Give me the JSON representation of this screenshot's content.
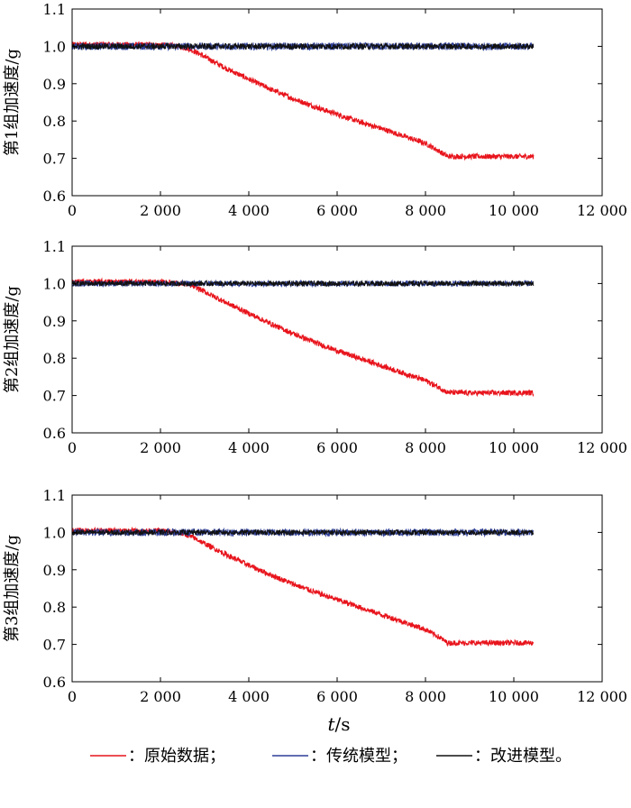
{
  "chart_data": [
    {
      "type": "line",
      "ylabel": "第1组加速度/g",
      "xlim": [
        0,
        12000
      ],
      "ylim": [
        0.6,
        1.1
      ],
      "xticks": [
        0,
        2000,
        4000,
        6000,
        8000,
        10000,
        12000
      ],
      "xtick_labels": [
        "0",
        "2 000",
        "4 000",
        "6 000",
        "8 000",
        "10 000",
        "12 000"
      ],
      "yticks": [
        0.6,
        0.7,
        0.8,
        0.9,
        1.0,
        1.1
      ],
      "ytick_labels": [
        "0.6",
        "0.7",
        "0.8",
        "0.9",
        "1.0",
        "1.1"
      ],
      "series": [
        {
          "name": "原始数据",
          "color": "#e8141c",
          "x": [
            0,
            1000,
            2000,
            2200,
            2400,
            2600,
            2800,
            3000,
            3500,
            4000,
            4500,
            5000,
            5500,
            6000,
            6500,
            7000,
            7500,
            8000,
            8300,
            8500,
            9000,
            9500,
            10000,
            10450
          ],
          "y": [
            1.005,
            1.005,
            1.004,
            1.003,
            1.0,
            0.995,
            0.985,
            0.972,
            0.94,
            0.912,
            0.885,
            0.86,
            0.838,
            0.818,
            0.798,
            0.78,
            0.76,
            0.74,
            0.72,
            0.705,
            0.705,
            0.705,
            0.705,
            0.705
          ],
          "noise": 0.007
        },
        {
          "name": "传统模型",
          "color": "#2d3f9a",
          "x": [
            0,
            10450
          ],
          "y": [
            1.0,
            1.0
          ],
          "noise": 0.01
        },
        {
          "name": "改进模型",
          "color": "#111111",
          "x": [
            0,
            10450
          ],
          "y": [
            1.0,
            1.0
          ],
          "noise": 0.008
        }
      ]
    },
    {
      "type": "line",
      "ylabel": "第2组加速度/g",
      "xlim": [
        0,
        12000
      ],
      "ylim": [
        0.6,
        1.1
      ],
      "xticks": [
        0,
        2000,
        4000,
        6000,
        8000,
        10000,
        12000
      ],
      "xtick_labels": [
        "0",
        "2 000",
        "4 000",
        "6 000",
        "8 000",
        "10 000",
        "12 000"
      ],
      "yticks": [
        0.6,
        0.7,
        0.8,
        0.9,
        1.0,
        1.1
      ],
      "ytick_labels": [
        "0.6",
        "0.7",
        "0.8",
        "0.9",
        "1.0",
        "1.1"
      ],
      "series": [
        {
          "name": "原始数据",
          "color": "#e8141c",
          "x": [
            0,
            1000,
            2000,
            2300,
            2600,
            2800,
            3000,
            3500,
            4000,
            4500,
            5000,
            5500,
            6000,
            6500,
            7000,
            7500,
            8000,
            8300,
            8500,
            9000,
            9500,
            10000,
            10450
          ],
          "y": [
            1.005,
            1.005,
            1.004,
            1.002,
            0.998,
            0.99,
            0.978,
            0.948,
            0.92,
            0.892,
            0.866,
            0.842,
            0.82,
            0.8,
            0.78,
            0.76,
            0.74,
            0.722,
            0.708,
            0.707,
            0.707,
            0.707,
            0.707
          ],
          "noise": 0.007
        },
        {
          "name": "传统模型",
          "color": "#2d3f9a",
          "x": [
            0,
            10450
          ],
          "y": [
            1.0,
            1.0
          ],
          "noise": 0.008
        },
        {
          "name": "改进模型",
          "color": "#111111",
          "x": [
            0,
            10450
          ],
          "y": [
            1.0,
            1.0
          ],
          "noise": 0.007
        }
      ]
    },
    {
      "type": "line",
      "ylabel": "第3组加速度/g",
      "xlim": [
        0,
        12000
      ],
      "ylim": [
        0.6,
        1.1
      ],
      "xticks": [
        0,
        2000,
        4000,
        6000,
        8000,
        10000,
        12000
      ],
      "xtick_labels": [
        "0",
        "2 000",
        "4 000",
        "6 000",
        "8 000",
        "10 000",
        "12 000"
      ],
      "yticks": [
        0.6,
        0.7,
        0.8,
        0.9,
        1.0,
        1.1
      ],
      "ytick_labels": [
        "0.6",
        "0.7",
        "0.8",
        "0.9",
        "1.0",
        "1.1"
      ],
      "series": [
        {
          "name": "原始数据",
          "color": "#e8141c",
          "x": [
            0,
            1000,
            2000,
            2200,
            2400,
            2600,
            2800,
            3000,
            3500,
            4000,
            4500,
            5000,
            5500,
            6000,
            6500,
            7000,
            7500,
            8000,
            8300,
            8500,
            9000,
            9500,
            10000,
            10450
          ],
          "y": [
            1.005,
            1.005,
            1.004,
            1.002,
            0.999,
            0.993,
            0.983,
            0.97,
            0.94,
            0.912,
            0.886,
            0.862,
            0.84,
            0.82,
            0.8,
            0.78,
            0.76,
            0.74,
            0.72,
            0.704,
            0.704,
            0.704,
            0.704,
            0.704
          ],
          "noise": 0.007
        },
        {
          "name": "传统模型",
          "color": "#2d3f9a",
          "x": [
            0,
            10450
          ],
          "y": [
            1.0,
            1.0
          ],
          "noise": 0.01
        },
        {
          "name": "改进模型",
          "color": "#111111",
          "x": [
            0,
            10450
          ],
          "y": [
            1.0,
            1.0
          ],
          "noise": 0.007
        }
      ]
    }
  ],
  "figure": {
    "xlabel_italic": "t",
    "xlabel_rest": "/s",
    "legend": [
      {
        "label": "：原始数据；",
        "color": "#e8141c"
      },
      {
        "label": "：传统模型；",
        "color": "#2d3f9a"
      },
      {
        "label": "：改进模型。",
        "color": "#111111"
      }
    ]
  }
}
